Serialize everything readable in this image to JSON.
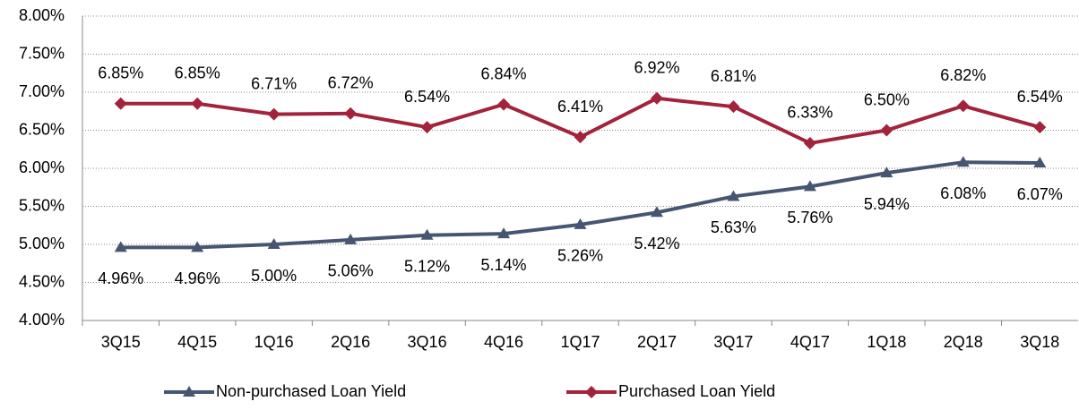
{
  "chart_data": {
    "type": "line",
    "categories": [
      "3Q15",
      "4Q15",
      "1Q16",
      "2Q16",
      "3Q16",
      "4Q16",
      "1Q17",
      "2Q17",
      "3Q17",
      "4Q17",
      "1Q18",
      "2Q18",
      "3Q18"
    ],
    "series": [
      {
        "name": "Non-purchased Loan Yield",
        "color": "#465672",
        "marker": "triangle",
        "values": [
          4.96,
          4.96,
          5.0,
          5.06,
          5.12,
          5.14,
          5.26,
          5.42,
          5.63,
          5.76,
          5.94,
          6.08,
          6.07
        ],
        "value_labels": [
          "4.96%",
          "4.96%",
          "5.00%",
          "5.06%",
          "5.12%",
          "5.14%",
          "5.26%",
          "5.42%",
          "5.63%",
          "5.76%",
          "5.94%",
          "6.08%",
          "6.07%"
        ]
      },
      {
        "name": "Purchased Loan Yield",
        "color": "#a3223c",
        "marker": "diamond",
        "values": [
          6.85,
          6.85,
          6.71,
          6.72,
          6.54,
          6.84,
          6.41,
          6.92,
          6.81,
          6.33,
          6.5,
          6.82,
          6.54
        ],
        "value_labels": [
          "6.85%",
          "6.85%",
          "6.71%",
          "6.72%",
          "6.54%",
          "6.84%",
          "6.41%",
          "6.92%",
          "6.81%",
          "6.33%",
          "6.50%",
          "6.82%",
          "6.54%"
        ]
      }
    ],
    "ylim": [
      4,
      8
    ],
    "yticks": [
      {
        "value": 4,
        "label": "4.00%"
      },
      {
        "value": 4.5,
        "label": "4.50%"
      },
      {
        "value": 5,
        "label": "5.00%"
      },
      {
        "value": 5.5,
        "label": "5.50%"
      },
      {
        "value": 6,
        "label": "6.00%"
      },
      {
        "value": 6.5,
        "label": "6.50%"
      },
      {
        "value": 7,
        "label": "7.00%"
      },
      {
        "value": 7.5,
        "label": "7.50%"
      },
      {
        "value": 8,
        "label": "8.00%"
      }
    ],
    "grid": true,
    "legend": "bottom"
  }
}
